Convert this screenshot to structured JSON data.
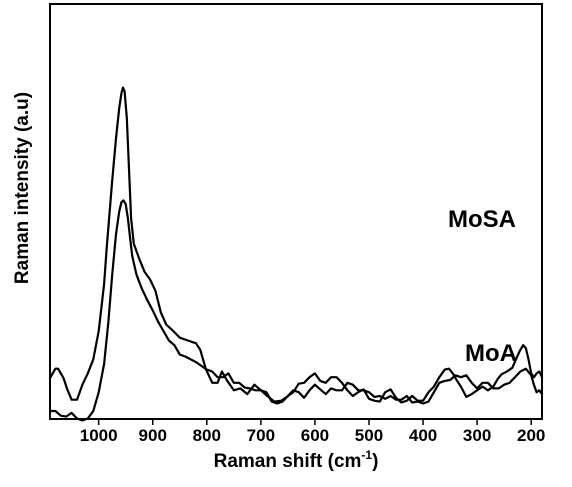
{
  "chart_data": {
    "type": "line",
    "xlabel": "Raman shift (cm",
    "xlabel_superscript": "-1",
    "xlabel_suffix": ")",
    "ylabel": "Raman intensity (a.u)",
    "xlim": [
      1090,
      180
    ],
    "x_reversed": true,
    "y_ticks_shown": false,
    "x_ticks": [
      1000,
      900,
      800,
      700,
      600,
      500,
      400,
      300,
      200
    ],
    "x_tick_labels": [
      "1000",
      "900",
      "800",
      "700",
      "600",
      "500",
      "400",
      "300",
      "200"
    ],
    "grid": false,
    "series": [
      {
        "name": "MoSA",
        "x": [
          1090,
          1080,
          1075,
          1065,
          1058,
          1050,
          1040,
          1030,
          1020,
          1010,
          1000,
          990,
          985,
          975,
          968,
          962,
          958,
          955,
          952,
          948,
          944,
          940,
          935,
          925,
          915,
          905,
          895,
          885,
          875,
          862,
          850,
          835,
          820,
          812,
          802,
          790,
          780,
          772,
          762,
          750,
          738,
          725,
          712,
          700,
          688,
          675,
          662,
          650,
          640,
          630,
          620,
          610,
          600,
          590,
          580,
          570,
          560,
          550,
          540,
          530,
          520,
          510,
          500,
          490,
          480,
          470,
          460,
          450,
          440,
          430,
          420,
          410,
          400,
          390,
          380,
          370,
          360,
          352,
          345,
          338,
          330,
          320,
          310,
          300,
          290,
          280,
          270,
          262,
          255,
          245,
          235,
          228,
          222,
          215,
          210,
          205,
          200,
          195,
          190,
          185,
          180
        ],
        "y": [
          0.85,
          0.95,
          0.95,
          0.85,
          0.73,
          0.62,
          0.62,
          0.78,
          0.9,
          1.05,
          1.35,
          1.85,
          2.25,
          2.95,
          3.4,
          3.72,
          3.88,
          3.94,
          3.9,
          3.62,
          3.1,
          2.55,
          2.28,
          2.12,
          1.98,
          1.9,
          1.78,
          1.55,
          1.42,
          1.35,
          1.28,
          1.25,
          1.22,
          1.15,
          0.95,
          0.8,
          0.8,
          0.92,
          0.82,
          0.72,
          0.74,
          0.68,
          0.78,
          0.72,
          0.66,
          0.6,
          0.61,
          0.66,
          0.7,
          0.79,
          0.8,
          0.86,
          0.9,
          0.82,
          0.8,
          0.86,
          0.86,
          0.8,
          0.72,
          0.66,
          0.7,
          0.73,
          0.63,
          0.61,
          0.6,
          0.7,
          0.73,
          0.64,
          0.59,
          0.61,
          0.66,
          0.61,
          0.61,
          0.7,
          0.76,
          0.86,
          0.94,
          0.95,
          0.9,
          0.83,
          0.76,
          0.65,
          0.68,
          0.72,
          0.76,
          0.72,
          0.76,
          0.84,
          0.89,
          0.92,
          0.96,
          1.05,
          1.13,
          1.2,
          1.17,
          1.05,
          0.9,
          0.86,
          0.9,
          0.92,
          0.86
        ]
      },
      {
        "name": "MoA",
        "x": [
          1090,
          1080,
          1070,
          1060,
          1050,
          1040,
          1030,
          1020,
          1010,
          1000,
          990,
          982,
          975,
          968,
          962,
          958,
          954,
          950,
          946,
          942,
          938,
          930,
          920,
          910,
          900,
          890,
          880,
          870,
          860,
          850,
          840,
          830,
          820,
          810,
          800,
          790,
          780,
          770,
          760,
          750,
          740,
          730,
          720,
          710,
          700,
          690,
          680,
          670,
          660,
          650,
          640,
          630,
          620,
          610,
          600,
          590,
          580,
          570,
          560,
          550,
          540,
          530,
          520,
          510,
          500,
          490,
          480,
          470,
          460,
          450,
          440,
          430,
          420,
          410,
          400,
          390,
          380,
          370,
          360,
          350,
          340,
          330,
          320,
          310,
          300,
          290,
          280,
          270,
          260,
          250,
          240,
          230,
          220,
          210,
          200,
          195,
          190,
          185,
          180
        ],
        "y": [
          0.5,
          0.5,
          0.45,
          0.44,
          0.48,
          0.42,
          0.4,
          0.42,
          0.5,
          0.7,
          1.0,
          1.45,
          1.95,
          2.38,
          2.62,
          2.72,
          2.74,
          2.7,
          2.55,
          2.35,
          2.15,
          1.95,
          1.8,
          1.68,
          1.57,
          1.45,
          1.35,
          1.25,
          1.2,
          1.1,
          1.08,
          1.05,
          1.02,
          0.98,
          0.94,
          0.92,
          0.86,
          0.86,
          0.9,
          0.8,
          0.8,
          0.75,
          0.74,
          0.72,
          0.72,
          0.7,
          0.6,
          0.58,
          0.6,
          0.66,
          0.72,
          0.7,
          0.64,
          0.72,
          0.78,
          0.73,
          0.68,
          0.74,
          0.72,
          0.72,
          0.8,
          0.78,
          0.72,
          0.72,
          0.7,
          0.65,
          0.66,
          0.63,
          0.66,
          0.62,
          0.62,
          0.66,
          0.59,
          0.6,
          0.58,
          0.6,
          0.7,
          0.8,
          0.82,
          0.83,
          0.88,
          0.86,
          0.88,
          0.8,
          0.74,
          0.8,
          0.8,
          0.74,
          0.74,
          0.78,
          0.8,
          0.86,
          0.92,
          0.95,
          0.88,
          0.78,
          0.7,
          0.72,
          0.68
        ]
      }
    ]
  }
}
